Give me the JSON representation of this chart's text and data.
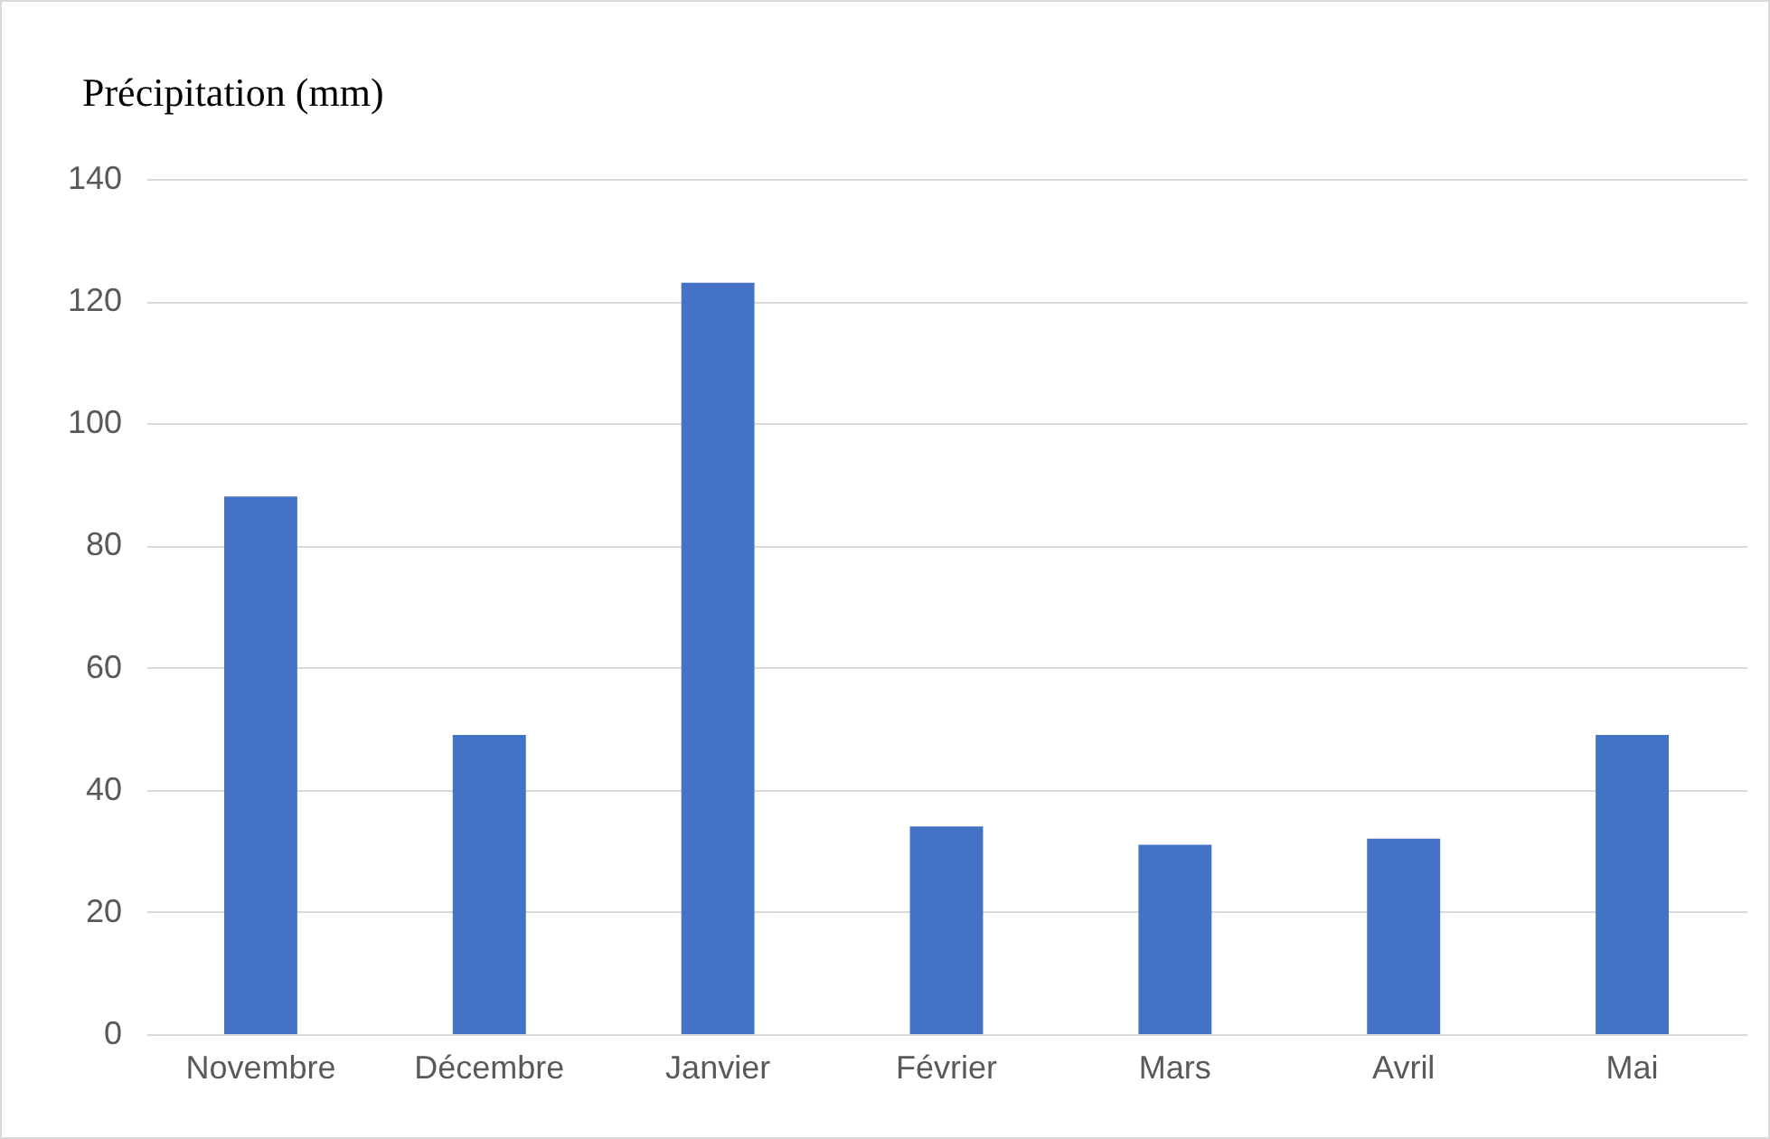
{
  "chart_data": {
    "type": "bar",
    "ylabel": "Précipitation (mm)",
    "categories": [
      "Novembre",
      "Décembre",
      "Janvier",
      "Février",
      "Mars",
      "Avril",
      "Mai"
    ],
    "values": [
      88,
      49,
      123,
      34,
      31,
      32,
      49
    ],
    "color": "#4472c4",
    "ylim": [
      0,
      140
    ],
    "yticks": [
      0,
      20,
      40,
      60,
      80,
      100,
      120,
      140
    ],
    "grid": "y"
  }
}
